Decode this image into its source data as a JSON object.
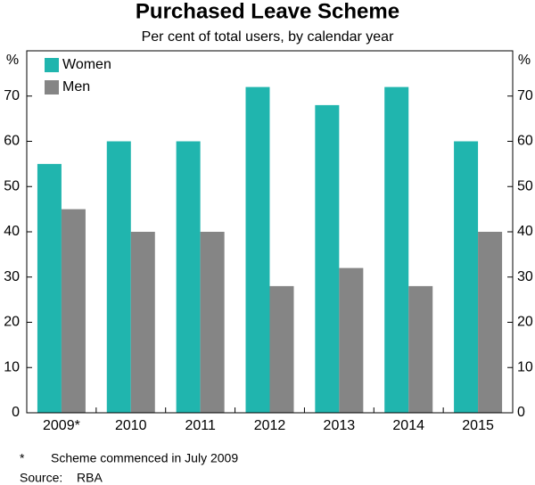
{
  "chart_data": {
    "type": "bar",
    "title": "Purchased Leave Scheme",
    "subtitle": "Per cent of total users, by calendar year",
    "y_unit": "%",
    "y2_unit": "%",
    "categories": [
      "2009*",
      "2010",
      "2011",
      "2012",
      "2013",
      "2014",
      "2015"
    ],
    "series": [
      {
        "name": "Women",
        "color": "#20b5ae",
        "values": [
          55,
          60,
          60,
          72,
          68,
          72,
          60
        ]
      },
      {
        "name": "Men",
        "color": "#858585",
        "values": [
          45,
          40,
          40,
          28,
          32,
          28,
          40
        ]
      }
    ],
    "ylim": [
      0,
      80
    ],
    "yticks": [
      0,
      10,
      20,
      30,
      40,
      50,
      60,
      70
    ],
    "y2lim": [
      0,
      80
    ],
    "y2ticks": [
      0,
      10,
      20,
      30,
      40,
      50,
      60,
      70
    ],
    "legend": "top-left",
    "grid": false,
    "notes": [
      [
        "*",
        "Scheme commenced in July 2009"
      ],
      [
        "Source:",
        "RBA"
      ]
    ]
  }
}
